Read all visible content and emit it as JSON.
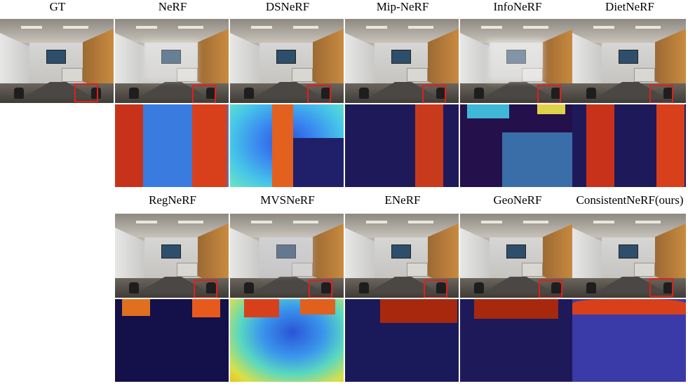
{
  "figure": {
    "gt_label": "GT",
    "row1_labels": [
      "NeRF",
      "DSNeRF",
      "Mip-NeRF",
      "InfoNeRF",
      "DietNeRF"
    ],
    "row2_labels": [
      "RegNeRF",
      "MVSNeRF",
      "ENeRF",
      "GeoNeRF",
      "ConsistentNeRF(ours)"
    ]
  }
}
